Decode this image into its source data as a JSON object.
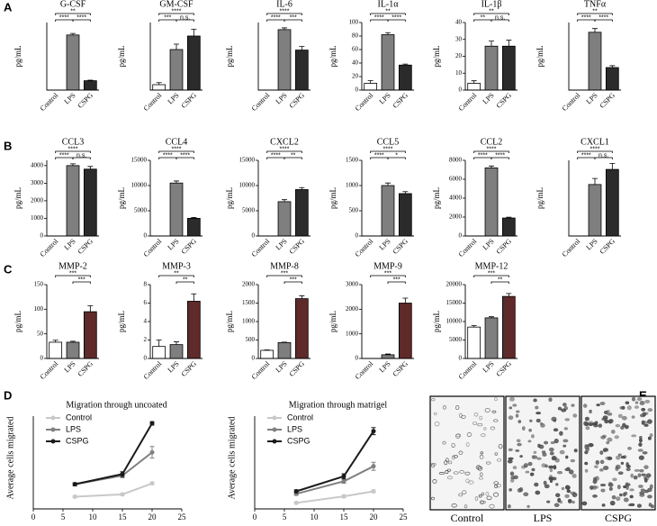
{
  "panel_labels": [
    "A",
    "B",
    "C",
    "D",
    "E"
  ],
  "chart_data": [
    {
      "type": "bar",
      "title": "G-CSF",
      "ylabel": "pg/mL",
      "categories": [
        "Control",
        "LPS",
        "CSPG"
      ],
      "values": [
        0,
        530,
        90
      ],
      "errors": [
        0,
        15,
        5
      ],
      "colors": [
        "#ffffff",
        "#7f7f7f",
        "#2b2b2b"
      ],
      "ylim": [
        0,
        650
      ],
      "yticks": [],
      "comparisons": [
        {
          "groups": [
            0,
            2
          ],
          "label": "**"
        },
        {
          "groups": [
            0,
            1
          ],
          "label": "****"
        },
        {
          "groups": [
            1,
            2
          ],
          "label": "****"
        }
      ]
    },
    {
      "type": "bar",
      "title": "GM-CSF",
      "ylabel": "pg/mL",
      "categories": [
        "Control",
        "LPS",
        "CSPG"
      ],
      "values": [
        4,
        30,
        40
      ],
      "errors": [
        1.5,
        4,
        5
      ],
      "colors": [
        "#ffffff",
        "#7f7f7f",
        "#2b2b2b"
      ],
      "ylim": [
        0,
        50
      ],
      "yticks": [],
      "comparisons": [
        {
          "groups": [
            0,
            2
          ],
          "label": "****"
        },
        {
          "groups": [
            0,
            1
          ],
          "label": "***"
        },
        {
          "groups": [
            1,
            2
          ],
          "label": "n.s."
        }
      ]
    },
    {
      "type": "bar",
      "title": "IL-6",
      "ylabel": "pg/mL",
      "categories": [
        "Control",
        "LPS",
        "CSPG"
      ],
      "values": [
        0,
        6800,
        4500
      ],
      "errors": [
        0,
        200,
        400
      ],
      "colors": [
        "#ffffff",
        "#7f7f7f",
        "#2b2b2b"
      ],
      "ylim": [
        0,
        7600
      ],
      "yticks": [],
      "comparisons": [
        {
          "groups": [
            0,
            2
          ],
          "label": "****"
        },
        {
          "groups": [
            0,
            1
          ],
          "label": "****"
        },
        {
          "groups": [
            1,
            2
          ],
          "label": "***"
        }
      ]
    },
    {
      "type": "bar",
      "title": "IL-1α",
      "ylabel": "pg/mL",
      "categories": [
        "Control",
        "LPS",
        "CSPG"
      ],
      "values": [
        10,
        82,
        37
      ],
      "errors": [
        4,
        3,
        1.5
      ],
      "colors": [
        "#ffffff",
        "#7f7f7f",
        "#2b2b2b"
      ],
      "ylim": [
        0,
        100
      ],
      "yticks": [
        0,
        20,
        40,
        60,
        80,
        100
      ],
      "comparisons": [
        {
          "groups": [
            0,
            2
          ],
          "label": "**"
        },
        {
          "groups": [
            0,
            1
          ],
          "label": "****"
        },
        {
          "groups": [
            1,
            2
          ],
          "label": "****"
        }
      ]
    },
    {
      "type": "bar",
      "title": "IL-1β",
      "ylabel": "pg/mL",
      "categories": [
        "Control",
        "LPS",
        "CSPG"
      ],
      "values": [
        4,
        26,
        26
      ],
      "errors": [
        1.5,
        3,
        3.5
      ],
      "colors": [
        "#ffffff",
        "#7f7f7f",
        "#2b2b2b"
      ],
      "ylim": [
        0,
        40
      ],
      "yticks": [
        0,
        10,
        20,
        30,
        40
      ],
      "comparisons": [
        {
          "groups": [
            0,
            2
          ],
          "label": "**"
        },
        {
          "groups": [
            0,
            1
          ],
          "label": "**"
        },
        {
          "groups": [
            1,
            2
          ],
          "label": "n.s."
        }
      ]
    },
    {
      "type": "bar",
      "title": "TNFα",
      "ylabel": "pg/mL",
      "categories": [
        "Control",
        "LPS",
        "CSPG"
      ],
      "values": [
        0,
        770,
        300
      ],
      "errors": [
        0,
        50,
        25
      ],
      "colors": [
        "#ffffff",
        "#7f7f7f",
        "#2b2b2b"
      ],
      "ylim": [
        0,
        900
      ],
      "yticks": [],
      "comparisons": [
        {
          "groups": [
            0,
            2
          ],
          "label": "**"
        },
        {
          "groups": [
            0,
            1
          ],
          "label": "****"
        },
        {
          "groups": [
            1,
            2
          ],
          "label": "****"
        }
      ]
    },
    {
      "type": "bar",
      "title": "CCL3",
      "ylabel": "pg/mL",
      "categories": [
        "Control",
        "LPS",
        "CSPG"
      ],
      "values": [
        0,
        4000,
        3800
      ],
      "errors": [
        0,
        100,
        150
      ],
      "colors": [
        "#ffffff",
        "#7f7f7f",
        "#2b2b2b"
      ],
      "ylim": [
        0,
        4300
      ],
      "yticks": [
        0,
        1000,
        2000,
        3000,
        4000
      ],
      "comparisons": [
        {
          "groups": [
            0,
            2
          ],
          "label": "****"
        },
        {
          "groups": [
            0,
            1
          ],
          "label": "****"
        },
        {
          "groups": [
            1,
            2
          ],
          "label": "n.s."
        }
      ]
    },
    {
      "type": "bar",
      "title": "CCL4",
      "ylabel": "pg/mL",
      "categories": [
        "Control",
        "LPS",
        "CSPG"
      ],
      "values": [
        0,
        10500,
        3500
      ],
      "errors": [
        0,
        400,
        150
      ],
      "colors": [
        "#ffffff",
        "#7f7f7f",
        "#2b2b2b"
      ],
      "ylim": [
        0,
        15000
      ],
      "yticks": [
        0,
        5000,
        10000,
        15000
      ],
      "comparisons": [
        {
          "groups": [
            0,
            2
          ],
          "label": "****"
        },
        {
          "groups": [
            0,
            1
          ],
          "label": "****"
        },
        {
          "groups": [
            1,
            2
          ],
          "label": "****"
        }
      ]
    },
    {
      "type": "bar",
      "title": "CXCL2",
      "ylabel": "pg/mL",
      "categories": [
        "Control",
        "LPS",
        "CSPG"
      ],
      "values": [
        0,
        6800,
        9200
      ],
      "errors": [
        0,
        400,
        400
      ],
      "colors": [
        "#ffffff",
        "#7f7f7f",
        "#2b2b2b"
      ],
      "ylim": [
        0,
        15000
      ],
      "yticks": [
        0,
        5000,
        10000,
        15000
      ],
      "comparisons": [
        {
          "groups": [
            0,
            2
          ],
          "label": "****"
        },
        {
          "groups": [
            0,
            1
          ],
          "label": "****"
        },
        {
          "groups": [
            1,
            2
          ],
          "label": "**"
        }
      ]
    },
    {
      "type": "bar",
      "title": "CCL5",
      "ylabel": "pg/mL",
      "categories": [
        "Control",
        "LPS",
        "CSPG"
      ],
      "values": [
        0,
        1000,
        840
      ],
      "errors": [
        0,
        50,
        40
      ],
      "colors": [
        "#ffffff",
        "#7f7f7f",
        "#2b2b2b"
      ],
      "ylim": [
        0,
        1500
      ],
      "yticks": [
        0,
        500,
        1000,
        1500
      ],
      "comparisons": [
        {
          "groups": [
            0,
            2
          ],
          "label": "****"
        },
        {
          "groups": [
            0,
            1
          ],
          "label": "****"
        },
        {
          "groups": [
            1,
            2
          ],
          "label": "*"
        }
      ]
    },
    {
      "type": "bar",
      "title": "CCL2",
      "ylabel": "pg/mL",
      "categories": [
        "Control",
        "LPS",
        "CSPG"
      ],
      "values": [
        0,
        7200,
        1900
      ],
      "errors": [
        0,
        200,
        80
      ],
      "colors": [
        "#ffffff",
        "#7f7f7f",
        "#2b2b2b"
      ],
      "ylim": [
        0,
        8000
      ],
      "yticks": [
        0,
        2000,
        4000,
        6000,
        8000
      ],
      "comparisons": [
        {
          "groups": [
            0,
            2
          ],
          "label": "****"
        },
        {
          "groups": [
            0,
            1
          ],
          "label": "****"
        },
        {
          "groups": [
            1,
            2
          ],
          "label": "****"
        }
      ]
    },
    {
      "type": "bar",
      "title": "CXCL1",
      "ylabel": "pg/mL",
      "categories": [
        "Control",
        "LPS",
        "CSPG"
      ],
      "values": [
        0,
        3400,
        4400
      ],
      "errors": [
        0,
        400,
        400
      ],
      "colors": [
        "#ffffff",
        "#7f7f7f",
        "#2b2b2b"
      ],
      "ylim": [
        0,
        5000
      ],
      "yticks": [],
      "comparisons": [
        {
          "groups": [
            0,
            2
          ],
          "label": "****"
        },
        {
          "groups": [
            0,
            1
          ],
          "label": "****"
        },
        {
          "groups": [
            1,
            2
          ],
          "label": "n.s."
        }
      ]
    },
    {
      "type": "bar",
      "title": "MMP-2",
      "ylabel": "pg/mL",
      "categories": [
        "Control",
        "LPS",
        "CSPG"
      ],
      "values": [
        33,
        33,
        95
      ],
      "errors": [
        4,
        2,
        12
      ],
      "colors": [
        "#ffffff",
        "#7f7f7f",
        "#5e2a2a"
      ],
      "ylim": [
        0,
        150
      ],
      "yticks": [
        0,
        50,
        100,
        150
      ],
      "comparisons": [
        {
          "groups": [
            0,
            2
          ],
          "label": "***"
        },
        {
          "groups": [
            1,
            2
          ],
          "label": "***"
        }
      ]
    },
    {
      "type": "bar",
      "title": "MMP-3",
      "ylabel": "pg/mL",
      "categories": [
        "Control",
        "LPS",
        "CSPG"
      ],
      "values": [
        1.3,
        1.5,
        6.2
      ],
      "errors": [
        0.7,
        0.3,
        0.8
      ],
      "colors": [
        "#ffffff",
        "#7f7f7f",
        "#5e2a2a"
      ],
      "ylim": [
        0,
        8
      ],
      "yticks": [
        0,
        2,
        4,
        6,
        8
      ],
      "comparisons": [
        {
          "groups": [
            0,
            2
          ],
          "label": "**"
        },
        {
          "groups": [
            1,
            2
          ],
          "label": "**"
        }
      ]
    },
    {
      "type": "bar",
      "title": "MMP-8",
      "ylabel": "pg/mL",
      "categories": [
        "Control",
        "LPS",
        "CSPG"
      ],
      "values": [
        220,
        430,
        1620
      ],
      "errors": [
        10,
        10,
        80
      ],
      "colors": [
        "#ffffff",
        "#7f7f7f",
        "#5e2a2a"
      ],
      "ylim": [
        0,
        2000
      ],
      "yticks": [
        0,
        500,
        1000,
        1500,
        2000
      ],
      "comparisons": [
        {
          "groups": [
            0,
            2
          ],
          "label": "***"
        },
        {
          "groups": [
            1,
            2
          ],
          "label": "***"
        }
      ]
    },
    {
      "type": "bar",
      "title": "MMP-9",
      "ylabel": "pg/mL",
      "categories": [
        "Control",
        "LPS",
        "CSPG"
      ],
      "values": [
        0,
        150,
        2250
      ],
      "errors": [
        0,
        30,
        200
      ],
      "colors": [
        "#ffffff",
        "#7f7f7f",
        "#5e2a2a"
      ],
      "ylim": [
        0,
        3000
      ],
      "yticks": [
        0,
        1000,
        2000,
        3000
      ],
      "comparisons": [
        {
          "groups": [
            0,
            2
          ],
          "label": "***"
        },
        {
          "groups": [
            1,
            2
          ],
          "label": "***"
        }
      ]
    },
    {
      "type": "bar",
      "title": "MMP-12",
      "ylabel": "pg/mL",
      "categories": [
        "Control",
        "LPS",
        "CSPG"
      ],
      "values": [
        8500,
        11000,
        16800
      ],
      "errors": [
        400,
        300,
        800
      ],
      "colors": [
        "#ffffff",
        "#7f7f7f",
        "#5e2a2a"
      ],
      "ylim": [
        0,
        20000
      ],
      "yticks": [
        0,
        5000,
        10000,
        15000,
        20000
      ],
      "comparisons": [
        {
          "groups": [
            0,
            2
          ],
          "label": "***"
        },
        {
          "groups": [
            1,
            2
          ],
          "label": "**"
        }
      ]
    },
    {
      "type": "line",
      "title": "Migration through uncoated",
      "ylabel": "Average cells migrated",
      "x": [
        7,
        15,
        20
      ],
      "xlim": [
        0,
        25
      ],
      "xticks": [
        0,
        5,
        10,
        15,
        20,
        25
      ],
      "ylim": [
        0,
        320
      ],
      "yticks": [],
      "legend": "upper left",
      "series": [
        {
          "name": "Control",
          "color": "#c8c8c8",
          "values": [
            42,
            50,
            88
          ],
          "errors": [
            3,
            3,
            4
          ]
        },
        {
          "name": "LPS",
          "color": "#808080",
          "values": [
            85,
            115,
            195
          ],
          "errors": [
            5,
            8,
            20
          ]
        },
        {
          "name": "CSPG",
          "color": "#1a1a1a",
          "values": [
            85,
            120,
            295
          ],
          "errors": [
            5,
            8,
            6
          ]
        }
      ]
    },
    {
      "type": "line",
      "title": "Migration through matrigel",
      "ylabel": "Average cells migrated",
      "x": [
        7,
        15,
        20
      ],
      "xlim": [
        0,
        25
      ],
      "xticks": [
        0,
        5,
        10,
        15,
        20,
        25
      ],
      "ylim": [
        0,
        185
      ],
      "yticks": [],
      "legend": "upper left",
      "series": [
        {
          "name": "Control",
          "color": "#c8c8c8",
          "values": [
            12,
            25,
            35
          ],
          "errors": [
            2,
            3,
            3
          ]
        },
        {
          "name": "LPS",
          "color": "#808080",
          "values": [
            30,
            55,
            85
          ],
          "errors": [
            3,
            4,
            8
          ]
        },
        {
          "name": "CSPG",
          "color": "#1a1a1a",
          "values": [
            35,
            65,
            155
          ],
          "errors": [
            3,
            5,
            7
          ]
        }
      ]
    }
  ],
  "micrographs": {
    "labels": [
      "Control",
      "LPS",
      "CSPG"
    ]
  }
}
